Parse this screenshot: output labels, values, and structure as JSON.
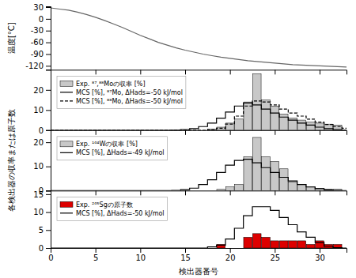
{
  "chart_data": [
    {
      "type": "line",
      "ylabel": "温度[°C]",
      "xlim": [
        0,
        33
      ],
      "xticks": [
        0,
        5,
        10,
        15,
        20,
        25,
        30
      ],
      "ylim": [
        -130,
        32
      ],
      "yticks": [
        -120,
        -90,
        -60,
        -30,
        0,
        30
      ],
      "tick_labels": "y",
      "series": [
        {
          "color": "#666666",
          "line_style": "solid",
          "x": [
            0,
            1,
            2,
            3,
            4,
            5,
            6,
            7,
            8,
            9,
            10,
            11,
            12,
            13,
            14,
            15,
            16,
            17,
            18,
            19,
            20,
            21,
            22,
            23,
            24,
            25,
            26,
            27,
            28,
            29,
            30,
            31,
            32,
            33
          ],
          "values": [
            28,
            25,
            22,
            17,
            11,
            4,
            -4,
            -13,
            -22,
            -32,
            -42,
            -51,
            -60,
            -67,
            -74,
            -80,
            -85,
            -90,
            -94,
            -98,
            -101,
            -104,
            -107,
            -109,
            -111,
            -113,
            -115,
            -117,
            -118,
            -119,
            -120,
            -121,
            -122,
            -123
          ]
        }
      ]
    },
    {
      "type": "bar",
      "legend": "upper left",
      "xlim": [
        0,
        33
      ],
      "xticks": [
        0,
        5,
        10,
        15,
        20,
        25,
        30
      ],
      "ylim": [
        0,
        30
      ],
      "yticks": [
        0,
        10,
        20
      ],
      "tick_labels": "y",
      "series": [
        {
          "name": "Exp. ⁸⁷,⁸⁸Moの収率 [%]",
          "type": "bar",
          "color": "#c8c8c8",
          "x": [
            18,
            19,
            20,
            21,
            22,
            23,
            24,
            25,
            26,
            27,
            28,
            29,
            30,
            31,
            32
          ],
          "values": [
            0.5,
            1.5,
            3.5,
            5.5,
            14.0,
            28.0,
            15.0,
            12.0,
            8.0,
            6.0,
            5.0,
            4.0,
            3.5,
            3.0,
            2.5
          ]
        },
        {
          "name": "MCS [%], ⁸⁷Mo, ΔHads=-50 kJ/mol",
          "type": "step",
          "color": "#000000",
          "line_style": "solid",
          "x": [
            0,
            1,
            2,
            3,
            4,
            5,
            6,
            7,
            8,
            9,
            10,
            11,
            12,
            13,
            14,
            15,
            16,
            17,
            18,
            19,
            20,
            21,
            22,
            23,
            24,
            25,
            26,
            27,
            28,
            29,
            30,
            31,
            32,
            33
          ],
          "values": [
            0,
            0,
            0,
            0,
            0,
            0,
            0,
            0,
            0,
            0,
            0,
            0,
            0,
            0,
            0.1,
            0.3,
            0.8,
            1.8,
            3.5,
            6.0,
            9.0,
            12.0,
            13.5,
            12.5,
            10.5,
            8.5,
            6.5,
            5.0,
            3.5,
            2.5,
            1.5,
            0.8,
            0.3,
            0.1
          ]
        },
        {
          "name": "MCS [%], ⁸⁸Mo, ΔHads=-50 kJ/mol",
          "type": "step",
          "color": "#000000",
          "line_style": "dashed",
          "x": [
            0,
            1,
            2,
            3,
            4,
            5,
            6,
            7,
            8,
            9,
            10,
            11,
            12,
            13,
            14,
            15,
            16,
            17,
            18,
            19,
            20,
            21,
            22,
            23,
            24,
            25,
            26,
            27,
            28,
            29,
            30,
            31,
            32,
            33
          ],
          "values": [
            0,
            0,
            0,
            0,
            0,
            0,
            0,
            0,
            0,
            0,
            0,
            0,
            0,
            0,
            0,
            0,
            0,
            0,
            0.3,
            1.0,
            3.0,
            7.0,
            12.0,
            14.5,
            14.0,
            12.5,
            10.5,
            8.5,
            7.0,
            5.5,
            4.0,
            2.8,
            1.8,
            1.0
          ]
        }
      ]
    },
    {
      "type": "bar",
      "legend": "upper left",
      "ylabel": "各検出器の収率または原子数",
      "xlim": [
        0,
        33
      ],
      "xticks": [
        0,
        5,
        10,
        15,
        20,
        25,
        30
      ],
      "ylim": [
        0,
        25
      ],
      "yticks": [
        0,
        10,
        20
      ],
      "tick_labels": "y",
      "series": [
        {
          "name": "Exp. ¹⁶⁴Wの収率 [%]",
          "type": "bar",
          "color": "#c8c8c8",
          "x": [
            19,
            20,
            21,
            22,
            23,
            24,
            25,
            26,
            27,
            28,
            29,
            30,
            31,
            32
          ],
          "values": [
            0.5,
            1.5,
            2.5,
            14.0,
            22.0,
            14.0,
            12.0,
            9.0,
            3.5,
            2.5,
            1.5,
            1.0,
            0.5,
            0.5
          ]
        },
        {
          "name": "MCS [%], ΔHads=-49 kJ/mol",
          "type": "step",
          "color": "#000000",
          "line_style": "solid",
          "x": [
            0,
            1,
            2,
            3,
            4,
            5,
            6,
            7,
            8,
            9,
            10,
            11,
            12,
            13,
            14,
            15,
            16,
            17,
            18,
            19,
            20,
            21,
            22,
            23,
            24,
            25,
            26,
            27,
            28,
            29,
            30,
            31,
            32,
            33
          ],
          "values": [
            0,
            0,
            0,
            0,
            0,
            0,
            0,
            0,
            0,
            0,
            0,
            0,
            0,
            0,
            0.1,
            0.4,
            1.0,
            2.5,
            4.5,
            7.5,
            10.5,
            12.5,
            13.0,
            11.5,
            9.5,
            7.5,
            5.5,
            4.0,
            2.5,
            1.5,
            0.8,
            0.3,
            0.1,
            0
          ]
        }
      ]
    },
    {
      "type": "bar",
      "legend": "upper left",
      "xlabel": "検出器番号",
      "xlim": [
        0,
        33
      ],
      "xticks": [
        0,
        5,
        10,
        15,
        20,
        25,
        30
      ],
      "ylim": [
        0,
        16
      ],
      "yticks": [
        0,
        5,
        10,
        15
      ],
      "series": [
        {
          "name": "Exp. ²⁶⁵Sgの原子数",
          "type": "bar",
          "color": "#dd0000",
          "x": [
            19,
            22,
            23,
            24,
            25,
            26,
            27,
            28,
            29,
            30,
            31,
            32
          ],
          "values": [
            1,
            3,
            4,
            3,
            2,
            2,
            2,
            2,
            1,
            2,
            1,
            1
          ]
        },
        {
          "name": "MCS [%], ΔHads=-50 kJ/mol",
          "type": "step",
          "color": "#000000",
          "line_style": "solid",
          "x": [
            0,
            1,
            2,
            3,
            4,
            5,
            6,
            7,
            8,
            9,
            10,
            11,
            12,
            13,
            14,
            15,
            16,
            17,
            18,
            19,
            20,
            21,
            22,
            23,
            24,
            25,
            26,
            27,
            28,
            29,
            30,
            31,
            32,
            33
          ],
          "values": [
            0,
            0,
            0,
            0,
            0,
            0,
            0,
            0,
            0,
            0,
            0,
            0,
            0,
            0,
            0,
            0,
            0,
            0,
            0.3,
            0.8,
            2.5,
            5.5,
            9.0,
            11.5,
            11.5,
            10.5,
            8.5,
            6.5,
            4.5,
            3.0,
            1.5,
            0.5,
            0.1,
            0
          ]
        }
      ]
    }
  ]
}
